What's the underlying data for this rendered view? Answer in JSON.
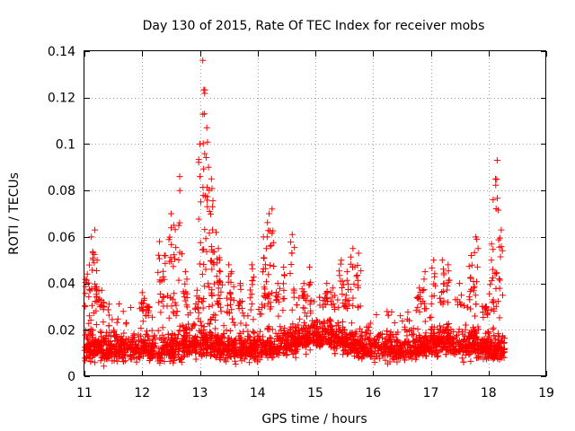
{
  "chart_data": {
    "type": "scatter",
    "title": "Day 130 of 2015, Rate Of TEC Index for receiver mobs",
    "xlabel": "GPS time / hours",
    "ylabel": "ROTI / TECUs",
    "xlim": [
      11,
      19
    ],
    "ylim": [
      0,
      0.14
    ],
    "x_ticks": [
      11,
      12,
      13,
      14,
      15,
      16,
      17,
      18,
      19
    ],
    "y_ticks": [
      0,
      0.02,
      0.04,
      0.06,
      0.08,
      0.1,
      0.12,
      0.14
    ],
    "x_tick_labels": [
      "11",
      "12",
      "13",
      "14",
      "15",
      "16",
      "17",
      "18",
      "19"
    ],
    "y_tick_labels": [
      "0",
      "0.02",
      "0.04",
      "0.06",
      "0.08",
      "0.1",
      "0.12",
      "0.14"
    ],
    "grid": true,
    "marker": "+",
    "color": "#ff0000",
    "data_extent": [
      11.0,
      18.28
    ],
    "peaks": [
      {
        "x": 11.05,
        "y": 0.044
      },
      {
        "x": 11.12,
        "y": 0.06
      },
      {
        "x": 11.18,
        "y": 0.063
      },
      {
        "x": 11.22,
        "y": 0.05
      },
      {
        "x": 11.3,
        "y": 0.037
      },
      {
        "x": 12.0,
        "y": 0.036
      },
      {
        "x": 12.1,
        "y": 0.03
      },
      {
        "x": 12.3,
        "y": 0.058
      },
      {
        "x": 12.4,
        "y": 0.052
      },
      {
        "x": 12.5,
        "y": 0.07
      },
      {
        "x": 12.55,
        "y": 0.065
      },
      {
        "x": 12.65,
        "y": 0.086
      },
      {
        "x": 12.75,
        "y": 0.045
      },
      {
        "x": 12.95,
        "y": 0.037
      },
      {
        "x": 13.0,
        "y": 0.1
      },
      {
        "x": 13.05,
        "y": 0.136
      },
      {
        "x": 13.08,
        "y": 0.113
      },
      {
        "x": 13.12,
        "y": 0.107
      },
      {
        "x": 13.15,
        "y": 0.09
      },
      {
        "x": 13.2,
        "y": 0.085
      },
      {
        "x": 13.22,
        "y": 0.073
      },
      {
        "x": 13.28,
        "y": 0.062
      },
      {
        "x": 13.32,
        "y": 0.055
      },
      {
        "x": 13.35,
        "y": 0.045
      },
      {
        "x": 13.5,
        "y": 0.048
      },
      {
        "x": 13.55,
        "y": 0.045
      },
      {
        "x": 13.7,
        "y": 0.04
      },
      {
        "x": 13.9,
        "y": 0.048
      },
      {
        "x": 14.1,
        "y": 0.06
      },
      {
        "x": 14.15,
        "y": 0.055
      },
      {
        "x": 14.2,
        "y": 0.07
      },
      {
        "x": 14.25,
        "y": 0.072
      },
      {
        "x": 14.35,
        "y": 0.04
      },
      {
        "x": 14.45,
        "y": 0.047
      },
      {
        "x": 14.6,
        "y": 0.061
      },
      {
        "x": 14.8,
        "y": 0.04
      },
      {
        "x": 14.9,
        "y": 0.047
      },
      {
        "x": 15.2,
        "y": 0.04
      },
      {
        "x": 15.3,
        "y": 0.038
      },
      {
        "x": 15.45,
        "y": 0.05
      },
      {
        "x": 15.55,
        "y": 0.045
      },
      {
        "x": 15.65,
        "y": 0.055
      },
      {
        "x": 15.75,
        "y": 0.053
      },
      {
        "x": 16.8,
        "y": 0.038
      },
      {
        "x": 16.9,
        "y": 0.045
      },
      {
        "x": 17.05,
        "y": 0.05
      },
      {
        "x": 17.2,
        "y": 0.05
      },
      {
        "x": 17.3,
        "y": 0.048
      },
      {
        "x": 17.5,
        "y": 0.04
      },
      {
        "x": 17.7,
        "y": 0.052
      },
      {
        "x": 17.78,
        "y": 0.06
      },
      {
        "x": 17.95,
        "y": 0.03
      },
      {
        "x": 18.05,
        "y": 0.05
      },
      {
        "x": 18.08,
        "y": 0.076
      },
      {
        "x": 18.12,
        "y": 0.085
      },
      {
        "x": 18.15,
        "y": 0.093
      },
      {
        "x": 18.22,
        "y": 0.063
      }
    ]
  }
}
